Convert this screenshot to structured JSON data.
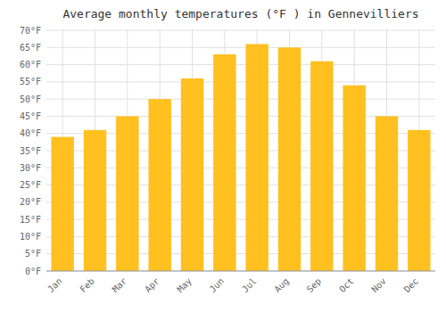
{
  "chart_data": {
    "type": "bar",
    "title": "Average monthly temperatures (°F ) in Gennevilliers",
    "categories": [
      "Jan",
      "Feb",
      "Mar",
      "Apr",
      "May",
      "Jun",
      "Jul",
      "Aug",
      "Sep",
      "Oct",
      "Nov",
      "Dec"
    ],
    "values": [
      39,
      41,
      45,
      50,
      56,
      63,
      66,
      65,
      61,
      54,
      45,
      41
    ],
    "color": "#FFC020",
    "ylim": [
      0,
      70
    ],
    "yticks": [
      {
        "value": 0,
        "label": "0°F"
      },
      {
        "value": 5,
        "label": "5°F"
      },
      {
        "value": 10,
        "label": "10°F"
      },
      {
        "value": 15,
        "label": "15°F"
      },
      {
        "value": 20,
        "label": "20°F"
      },
      {
        "value": 25,
        "label": "25°F"
      },
      {
        "value": 30,
        "label": "30°F"
      },
      {
        "value": 35,
        "label": "35°F"
      },
      {
        "value": 40,
        "label": "40°F"
      },
      {
        "value": 45,
        "label": "45°F"
      },
      {
        "value": 50,
        "label": "50°F"
      },
      {
        "value": 55,
        "label": "55°F"
      },
      {
        "value": 60,
        "label": "60°F"
      },
      {
        "value": 65,
        "label": "65°F"
      },
      {
        "value": 70,
        "label": "70°F"
      }
    ],
    "grid": true
  }
}
